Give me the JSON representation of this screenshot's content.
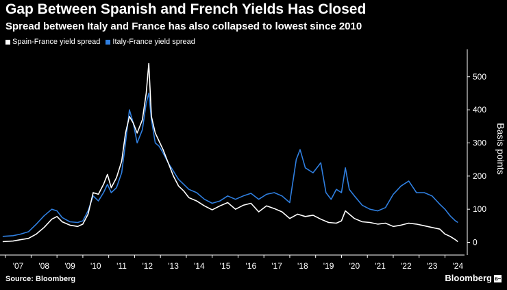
{
  "header": {
    "title": "Gap Between Spanish and French Yields Has Closed",
    "subtitle": "Spread between Italy and France has also collapsed to lowest since 2010"
  },
  "footer": {
    "source": "Source: Bloomberg",
    "brand": "Bloomberg",
    "brand_mark": "в–¸"
  },
  "colors": {
    "background": "#000000",
    "spain": "#ffffff",
    "italy": "#2f7fe0",
    "axis": "#ffffff"
  },
  "chart_data": {
    "type": "line",
    "title": "Gap Between Spanish and French Yields Has Closed",
    "subtitle": "Spread between Italy and France has also collapsed to lowest since 2010",
    "ylabel": "Basis points",
    "xlabel": "",
    "ylim": [
      -30,
      570
    ],
    "yticks": [
      0,
      100,
      200,
      300,
      400,
      500
    ],
    "xlim": [
      2006.85,
      2024.65
    ],
    "xticks": [
      {
        "value": 2007.5,
        "label": "'07"
      },
      {
        "value": 2008.5,
        "label": "'08"
      },
      {
        "value": 2009.5,
        "label": "'09"
      },
      {
        "value": 2010.5,
        "label": "'10"
      },
      {
        "value": 2011.5,
        "label": "'11"
      },
      {
        "value": 2012.5,
        "label": "'12"
      },
      {
        "value": 2013.5,
        "label": "'13"
      },
      {
        "value": 2014.5,
        "label": "'14"
      },
      {
        "value": 2015.5,
        "label": "'15"
      },
      {
        "value": 2016.5,
        "label": "'16"
      },
      {
        "value": 2017.5,
        "label": "'17"
      },
      {
        "value": 2018.5,
        "label": "'18"
      },
      {
        "value": 2019.5,
        "label": "'19"
      },
      {
        "value": 2020.5,
        "label": "'20"
      },
      {
        "value": 2021.5,
        "label": "'21"
      },
      {
        "value": 2022.5,
        "label": "'22"
      },
      {
        "value": 2023.5,
        "label": "'23"
      },
      {
        "value": 2024.5,
        "label": "'24"
      }
    ],
    "legend_position": "top-left",
    "series": [
      {
        "name": "Spain-France yield spread",
        "color": "#ffffff",
        "x": [
          2006.9,
          2007.3,
          2007.6,
          2007.9,
          2008.2,
          2008.5,
          2008.8,
          2009.0,
          2009.2,
          2009.5,
          2009.8,
          2010.0,
          2010.2,
          2010.4,
          2010.6,
          2010.8,
          2010.95,
          2011.1,
          2011.3,
          2011.5,
          2011.65,
          2011.8,
          2011.95,
          2012.1,
          2012.3,
          2012.45,
          2012.55,
          2012.65,
          2012.8,
          2012.95,
          2013.1,
          2013.3,
          2013.5,
          2013.7,
          2013.9,
          2014.1,
          2014.4,
          2014.7,
          2015.0,
          2015.3,
          2015.6,
          2015.9,
          2016.2,
          2016.5,
          2016.8,
          2017.1,
          2017.4,
          2017.7,
          2018.0,
          2018.3,
          2018.6,
          2018.9,
          2019.2,
          2019.5,
          2019.8,
          2020.0,
          2020.15,
          2020.3,
          2020.5,
          2020.8,
          2021.1,
          2021.4,
          2021.7,
          2022.0,
          2022.3,
          2022.6,
          2022.9,
          2023.2,
          2023.5,
          2023.8,
          2024.0,
          2024.2,
          2024.4,
          2024.5
        ],
        "values": [
          2,
          4,
          8,
          12,
          25,
          45,
          70,
          78,
          62,
          52,
          48,
          55,
          85,
          150,
          145,
          175,
          205,
          165,
          195,
          245,
          330,
          380,
          360,
          330,
          370,
          450,
          540,
          380,
          330,
          305,
          280,
          240,
          200,
          170,
          155,
          135,
          125,
          110,
          98,
          110,
          120,
          100,
          112,
          118,
          92,
          110,
          102,
          92,
          72,
          85,
          78,
          82,
          70,
          60,
          58,
          65,
          95,
          85,
          72,
          62,
          60,
          55,
          58,
          48,
          52,
          58,
          55,
          50,
          45,
          40,
          25,
          18,
          8,
          2
        ]
      },
      {
        "name": "Italy-France yield spread",
        "color": "#2f7fe0",
        "x": [
          2006.9,
          2007.3,
          2007.6,
          2007.9,
          2008.2,
          2008.5,
          2008.8,
          2009.0,
          2009.2,
          2009.5,
          2009.8,
          2010.0,
          2010.2,
          2010.4,
          2010.6,
          2010.8,
          2010.95,
          2011.1,
          2011.3,
          2011.5,
          2011.65,
          2011.8,
          2011.95,
          2012.1,
          2012.3,
          2012.45,
          2012.55,
          2012.65,
          2012.8,
          2012.95,
          2013.1,
          2013.3,
          2013.5,
          2013.7,
          2013.9,
          2014.1,
          2014.4,
          2014.7,
          2015.0,
          2015.3,
          2015.6,
          2015.9,
          2016.2,
          2016.5,
          2016.8,
          2017.1,
          2017.4,
          2017.7,
          2018.0,
          2018.25,
          2018.4,
          2018.6,
          2018.9,
          2019.2,
          2019.4,
          2019.6,
          2019.8,
          2020.0,
          2020.15,
          2020.3,
          2020.5,
          2020.8,
          2021.1,
          2021.4,
          2021.7,
          2022.0,
          2022.3,
          2022.6,
          2022.9,
          2023.2,
          2023.5,
          2023.8,
          2024.0,
          2024.2,
          2024.4,
          2024.5
        ],
        "values": [
          18,
          20,
          25,
          32,
          55,
          80,
          100,
          95,
          75,
          62,
          60,
          65,
          95,
          140,
          125,
          150,
          175,
          150,
          165,
          210,
          300,
          400,
          360,
          300,
          340,
          420,
          450,
          370,
          300,
          290,
          270,
          240,
          215,
          190,
          175,
          160,
          150,
          130,
          118,
          125,
          140,
          130,
          140,
          148,
          130,
          145,
          150,
          140,
          120,
          250,
          280,
          225,
          210,
          240,
          150,
          130,
          160,
          150,
          225,
          160,
          140,
          112,
          100,
          95,
          105,
          145,
          170,
          185,
          150,
          150,
          140,
          115,
          100,
          80,
          65,
          60
        ]
      }
    ]
  }
}
